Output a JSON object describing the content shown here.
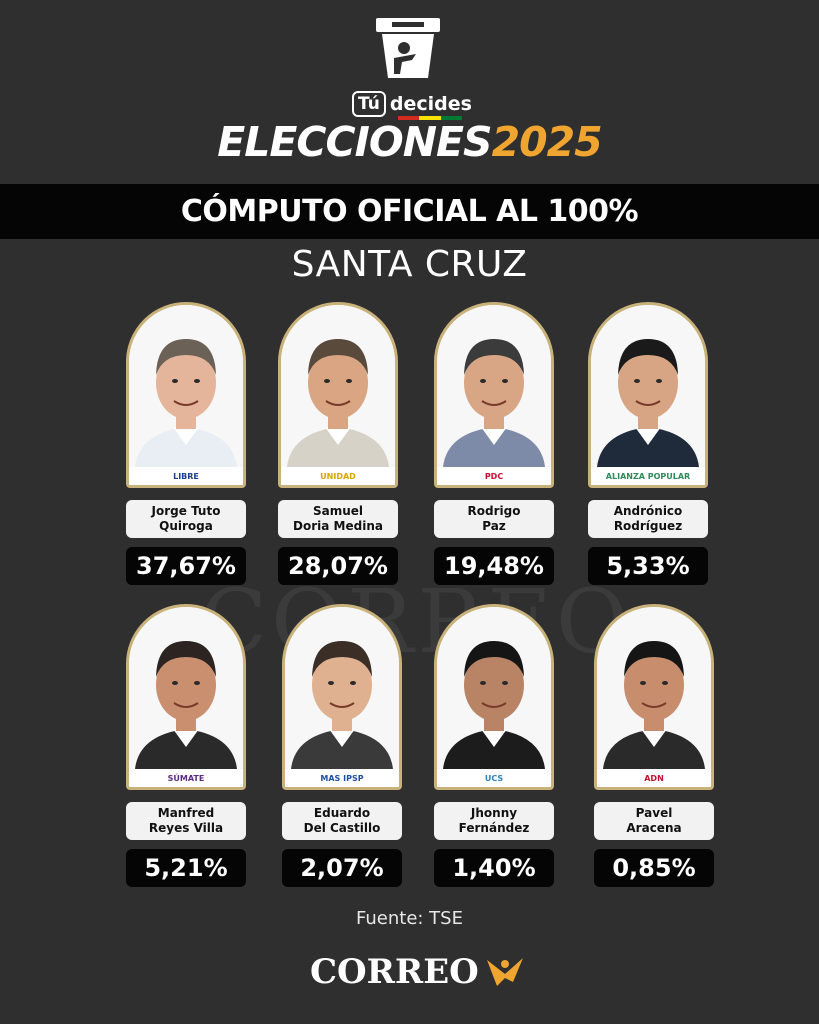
{
  "header": {
    "brand_tu": "Tú",
    "brand_decides": "decides",
    "title_main": "ELECCIONES",
    "title_year": "2025",
    "banner": "CÓMPUTO OFICIAL AL 100%",
    "region": "SANTA CRUZ",
    "accent_color": "#f0a531",
    "flag_colors": [
      "#d52b1e",
      "#f9e300",
      "#007934"
    ]
  },
  "watermark": "CORREO",
  "candidates": [
    {
      "name_line1": "Jorge Tuto",
      "name_line2": "Quiroga",
      "percent": "37,67%",
      "party": "LIBRE",
      "party_color": "#1b3d8f",
      "suit": "#e9eef5",
      "hair": "#6b6157",
      "skin": "#e4b59a"
    },
    {
      "name_line1": "Samuel",
      "name_line2": "Doria Medina",
      "percent": "28,07%",
      "party": "UNIDAD",
      "party_color": "#d9a400",
      "suit": "#d7d2c8",
      "hair": "#5a4a3c",
      "skin": "#d9a582"
    },
    {
      "name_line1": "Rodrigo",
      "name_line2": "Paz",
      "percent": "19,48%",
      "party": "PDC",
      "party_color": "#c8102e",
      "suit": "#7d8aa8",
      "hair": "#3b3b3b",
      "skin": "#d8a585"
    },
    {
      "name_line1": "Andrónico",
      "name_line2": "Rodríguez",
      "percent": "5,33%",
      "party": "ALIANZA POPULAR",
      "party_color": "#2e8b57",
      "suit": "#1f2a3a",
      "hair": "#1a1a1a",
      "skin": "#d7a583"
    },
    {
      "name_line1": "Manfred",
      "name_line2": "Reyes Villa",
      "percent": "5,21%",
      "party": "SÚMATE",
      "party_color": "#5b2a86",
      "suit": "#2a2a2a",
      "hair": "#2b2420",
      "skin": "#c98f6e"
    },
    {
      "name_line1": "Eduardo",
      "name_line2": "Del Castillo",
      "percent": "2,07%",
      "party": "MAS IPSP",
      "party_color": "#1d4fa3",
      "suit": "#3a3a3a",
      "hair": "#3a2e27",
      "skin": "#e0b190"
    },
    {
      "name_line1": "Jhonny",
      "name_line2": "Fernández",
      "percent": "1,40%",
      "party": "UCS",
      "party_color": "#2a7fc1",
      "suit": "#1c1c1c",
      "hair": "#151515",
      "skin": "#b98465"
    },
    {
      "name_line1": "Pavel",
      "name_line2": "Aracena",
      "percent": "0,85%",
      "party": "ADN",
      "party_color": "#c8102e",
      "suit": "#2a2a2a",
      "hair": "#151515",
      "skin": "#c78d6c"
    }
  ],
  "footer": {
    "source": "Fuente: TSE",
    "logo_text": "CORREO"
  }
}
